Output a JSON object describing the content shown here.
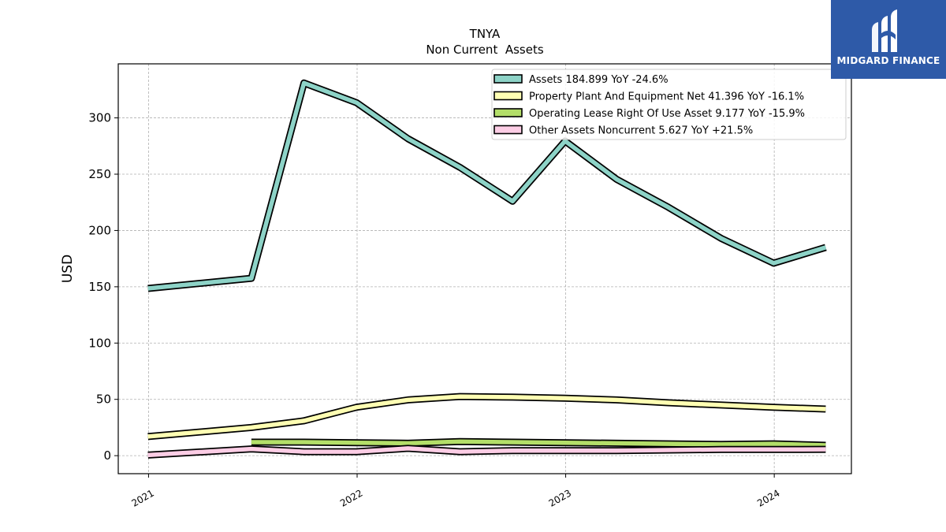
{
  "chart_data": {
    "type": "line",
    "title": "TNYA",
    "subtitle": "Non Current  Assets",
    "ylabel": "USD",
    "xlabel": "",
    "ylim": [
      -16,
      348
    ],
    "xlim": [
      "2020-11-09",
      "2024-05-15"
    ],
    "grid": true,
    "legend_position": "top-right",
    "yticks": [
      0,
      50,
      100,
      150,
      200,
      250,
      300
    ],
    "xticks": [
      {
        "date": "2021-01-01",
        "label": "2021"
      },
      {
        "date": "2022-01-01",
        "label": "2022"
      },
      {
        "date": "2023-01-01",
        "label": "2023"
      },
      {
        "date": "2024-01-01",
        "label": "2024"
      }
    ],
    "series": [
      {
        "name": "Assets",
        "legend_label": "Assets  184.899 YoY -24.6%",
        "color": "#8dd3c7",
        "points": [
          [
            "2020-12-31",
            148.5
          ],
          [
            "2021-06-30",
            157.5
          ],
          [
            "2021-09-30",
            331.0
          ],
          [
            "2021-12-31",
            313.5
          ],
          [
            "2022-03-31",
            281.5
          ],
          [
            "2022-06-30",
            256.0
          ],
          [
            "2022-09-30",
            226.0
          ],
          [
            "2022-12-31",
            279.5
          ],
          [
            "2023-03-31",
            245.5
          ],
          [
            "2023-06-30",
            220.5
          ],
          [
            "2023-09-30",
            193.0
          ],
          [
            "2023-12-31",
            171.0
          ],
          [
            "2024-03-31",
            185.0
          ]
        ]
      },
      {
        "name": "Property Plant And Equipment Net",
        "legend_label": "Property Plant And Equipment Net  41.396 YoY -16.1%",
        "color": "#ffffb3",
        "points": [
          [
            "2020-12-31",
            17.0
          ],
          [
            "2021-06-30",
            25.0
          ],
          [
            "2021-09-30",
            31.0
          ],
          [
            "2021-12-31",
            43.0
          ],
          [
            "2022-03-31",
            49.5
          ],
          [
            "2022-06-30",
            52.5
          ],
          [
            "2022-09-30",
            52.0
          ],
          [
            "2022-12-31",
            51.0
          ],
          [
            "2023-03-31",
            49.5
          ],
          [
            "2023-06-30",
            47.0
          ],
          [
            "2023-09-30",
            45.0
          ],
          [
            "2023-12-31",
            43.0
          ],
          [
            "2024-03-31",
            41.4
          ]
        ]
      },
      {
        "name": "Operating Lease Right Of Use Asset",
        "legend_label": "Operating Lease Right Of Use Asset  9.177 YoY -15.9%",
        "color": "#b3de69",
        "points": [
          [
            "2021-06-30",
            12.0
          ],
          [
            "2021-09-30",
            12.0
          ],
          [
            "2021-12-31",
            11.5
          ],
          [
            "2022-03-31",
            11.0
          ],
          [
            "2022-06-30",
            12.5
          ],
          [
            "2022-09-30",
            12.0
          ],
          [
            "2022-12-31",
            11.5
          ],
          [
            "2023-03-31",
            11.0
          ],
          [
            "2023-06-30",
            10.5
          ],
          [
            "2023-09-30",
            10.0
          ],
          [
            "2023-12-31",
            10.5
          ],
          [
            "2024-03-31",
            9.2
          ]
        ]
      },
      {
        "name": "Other Assets Noncurrent",
        "legend_label": "Other Assets Noncurrent  5.627 YoY +21.5%",
        "color": "#fccde5",
        "points": [
          [
            "2020-12-31",
            0.5
          ],
          [
            "2021-06-30",
            6.0
          ],
          [
            "2021-09-30",
            3.5
          ],
          [
            "2021-12-31",
            3.5
          ],
          [
            "2022-03-31",
            6.5
          ],
          [
            "2022-06-30",
            3.5
          ],
          [
            "2022-09-30",
            4.5
          ],
          [
            "2022-12-31",
            4.5
          ],
          [
            "2023-03-31",
            4.5
          ],
          [
            "2023-06-30",
            5.0
          ],
          [
            "2023-09-30",
            5.5
          ],
          [
            "2023-12-31",
            5.5
          ],
          [
            "2024-03-31",
            5.6
          ]
        ]
      }
    ]
  },
  "logo": {
    "text": "MIDGARD FINANCE",
    "background": "#2e5aa8"
  }
}
